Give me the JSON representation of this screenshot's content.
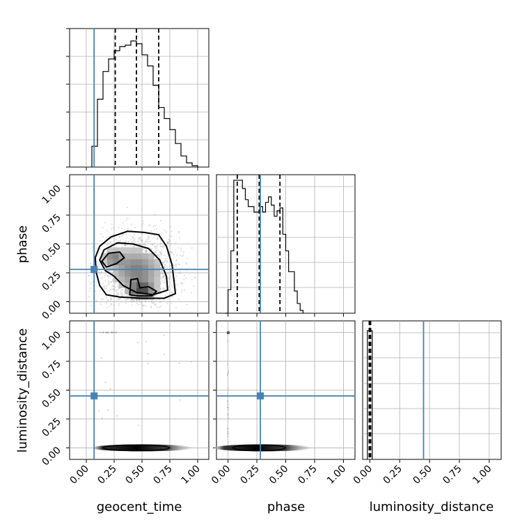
{
  "chart_data": {
    "type": "corner",
    "parameters": [
      "geocent_time",
      "phase",
      "luminosity_distance"
    ],
    "tick_labels": [
      "0.00",
      "0.25",
      "0.50",
      "0.75",
      "1.00"
    ],
    "truth": {
      "geocent_time": 0.07,
      "phase": 0.28,
      "luminosity_distance": 0.45
    },
    "colors": {
      "truth": "#4682b4",
      "hist": "#000000",
      "grid": "#b0b0b0"
    },
    "panels": {
      "geocent_time_hist": {
        "xlim": [
          -0.15,
          1.1
        ],
        "bin_edges": [
          0.05,
          0.1,
          0.15,
          0.2,
          0.25,
          0.3,
          0.35,
          0.4,
          0.45,
          0.5,
          0.55,
          0.6,
          0.65,
          0.7,
          0.75,
          0.8,
          0.85,
          0.9,
          0.95,
          1.0
        ],
        "counts": [
          0.15,
          0.49,
          0.69,
          0.78,
          0.84,
          0.87,
          0.88,
          0.91,
          0.89,
          0.81,
          0.73,
          0.59,
          0.43,
          0.35,
          0.27,
          0.17,
          0.08,
          0.03,
          0.01
        ],
        "quantiles": [
          0.26,
          0.45,
          0.65
        ]
      },
      "phase_hist": {
        "xlim": [
          -0.1,
          1.1
        ],
        "bin_edges": [
          -0.025,
          0.0,
          0.025,
          0.05,
          0.075,
          0.1,
          0.125,
          0.15,
          0.175,
          0.2,
          0.225,
          0.25,
          0.275,
          0.3,
          0.325,
          0.35,
          0.375,
          0.4,
          0.425,
          0.45,
          0.475,
          0.5,
          0.525,
          0.55,
          0.575,
          0.6,
          0.625,
          0.65
        ],
        "counts": [
          0.0,
          0.17,
          0.45,
          0.96,
          0.96,
          0.96,
          0.9,
          0.82,
          0.77,
          0.77,
          0.73,
          0.73,
          0.77,
          0.73,
          0.8,
          0.84,
          0.78,
          0.7,
          0.74,
          0.76,
          0.57,
          0.45,
          0.3,
          0.3,
          0.16,
          0.07,
          0.02
        ],
        "quantiles": [
          0.08,
          0.27,
          0.45
        ]
      },
      "luminosity_distance_hist": {
        "xlim": [
          -0.06,
          1.1
        ],
        "bin_edges": [
          -0.02,
          0.0,
          0.02
        ],
        "counts": [
          0.93,
          0.93
        ],
        "quantiles": [
          -0.005,
          0.0,
          0.007
        ]
      },
      "phase_vs_geocent_time": {
        "xlim": [
          -0.15,
          1.1
        ],
        "ylim": [
          -0.1,
          1.1
        ],
        "contours": [
          [
            [
              0.08,
              0.38
            ],
            [
              0.12,
              0.48
            ],
            [
              0.22,
              0.56
            ],
            [
              0.37,
              0.61
            ],
            [
              0.52,
              0.6
            ],
            [
              0.65,
              0.58
            ],
            [
              0.72,
              0.48
            ],
            [
              0.77,
              0.32
            ],
            [
              0.79,
              0.16
            ],
            [
              0.8,
              0.07
            ],
            [
              0.7,
              0.03
            ],
            [
              0.5,
              0.03
            ],
            [
              0.3,
              0.04
            ],
            [
              0.18,
              0.06
            ],
            [
              0.12,
              0.14
            ],
            [
              0.09,
              0.25
            ]
          ],
          [
            [
              0.12,
              0.36
            ],
            [
              0.16,
              0.45
            ],
            [
              0.28,
              0.51
            ],
            [
              0.42,
              0.5
            ],
            [
              0.56,
              0.46
            ],
            [
              0.66,
              0.36
            ],
            [
              0.72,
              0.22
            ],
            [
              0.73,
              0.1
            ],
            [
              0.6,
              0.06
            ],
            [
              0.45,
              0.08
            ],
            [
              0.33,
              0.14
            ],
            [
              0.25,
              0.22
            ],
            [
              0.17,
              0.27
            ]
          ],
          [
            [
              0.14,
              0.35
            ],
            [
              0.2,
              0.42
            ],
            [
              0.3,
              0.43
            ],
            [
              0.34,
              0.38
            ],
            [
              0.27,
              0.33
            ],
            [
              0.18,
              0.3
            ]
          ],
          [
            [
              0.39,
              0.06
            ],
            [
              0.4,
              0.19
            ],
            [
              0.46,
              0.2
            ],
            [
              0.48,
              0.12
            ],
            [
              0.56,
              0.13
            ],
            [
              0.63,
              0.09
            ],
            [
              0.59,
              0.05
            ],
            [
              0.47,
              0.05
            ]
          ]
        ]
      },
      "luminosity_distance_vs_geocent_time": {
        "xlim": [
          -0.15,
          1.1
        ],
        "ylim": [
          -0.1,
          1.1
        ],
        "band_y": 0.0
      },
      "luminosity_distance_vs_phase": {
        "xlim": [
          -0.1,
          1.1
        ],
        "ylim": [
          -0.1,
          1.1
        ],
        "band_y": 0.0
      }
    }
  }
}
